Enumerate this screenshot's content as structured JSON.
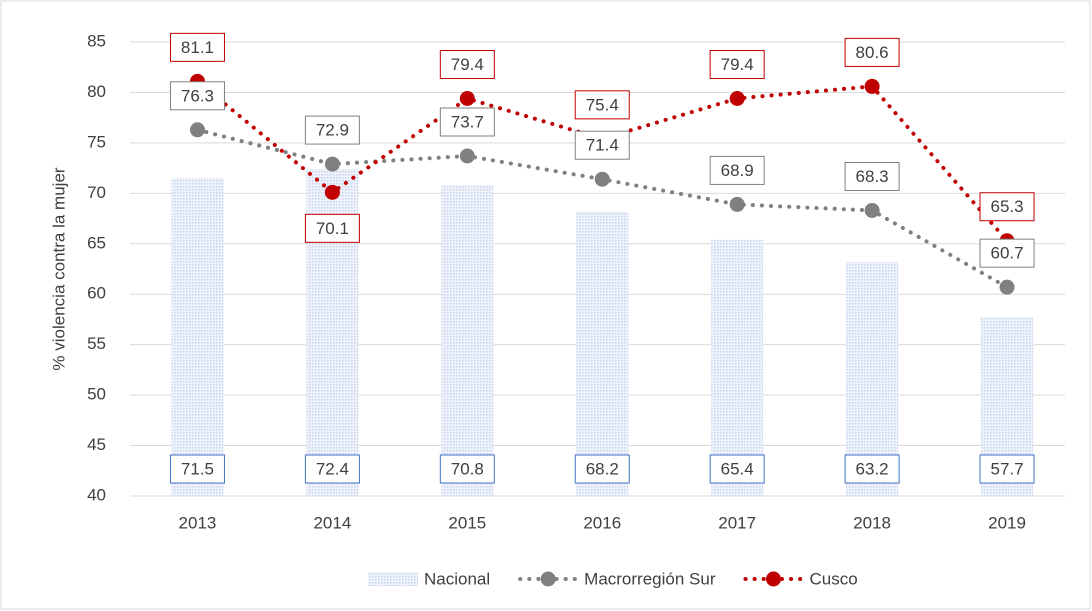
{
  "chart_data": {
    "type": "bar_line",
    "y_label": "% violencia contra la mujer",
    "categories": [
      "2013",
      "2014",
      "2015",
      "2016",
      "2017",
      "2018",
      "2019"
    ],
    "series": [
      {
        "name": "Nacional",
        "type": "bar",
        "color": "#dae3f3",
        "label_border": "#4472c4",
        "values": [
          71.5,
          72.4,
          70.8,
          68.2,
          65.4,
          63.2,
          57.7
        ]
      },
      {
        "name": "Macrorregión Sur",
        "type": "line",
        "color": "#808080",
        "values": [
          76.3,
          72.9,
          73.7,
          71.4,
          68.9,
          68.3,
          60.7
        ]
      },
      {
        "name": "Cusco",
        "type": "line",
        "color": "#c00000",
        "values": [
          81.1,
          70.1,
          79.4,
          75.4,
          79.4,
          80.6,
          65.3
        ]
      }
    ],
    "ylim": [
      40,
      85
    ],
    "yticks": [
      40,
      45,
      50,
      55,
      60,
      65,
      70,
      75,
      80,
      85
    ],
    "grid": true,
    "legend": "bottom"
  }
}
